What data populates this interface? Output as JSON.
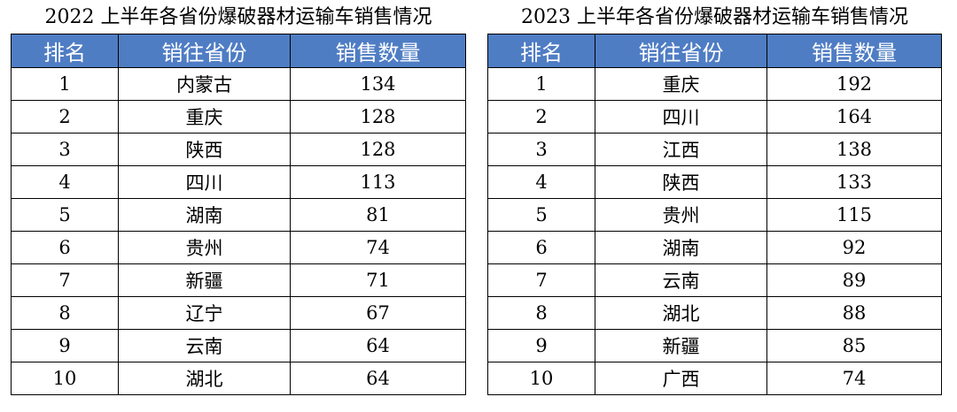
{
  "tables": [
    {
      "title": "2022 上半年各省份爆破器材运输车销售情况",
      "headers": [
        "排名",
        "销往省份",
        "销售数量"
      ],
      "rows": [
        [
          "1",
          "内蒙古",
          "134"
        ],
        [
          "2",
          "重庆",
          "128"
        ],
        [
          "3",
          "陕西",
          "128"
        ],
        [
          "4",
          "四川",
          "113"
        ],
        [
          "5",
          "湖南",
          "81"
        ],
        [
          "6",
          "贵州",
          "74"
        ],
        [
          "7",
          "新疆",
          "71"
        ],
        [
          "8",
          "辽宁",
          "67"
        ],
        [
          "9",
          "云南",
          "64"
        ],
        [
          "10",
          "湖北",
          "64"
        ]
      ]
    },
    {
      "title": "2023 上半年各省份爆破器材运输车销售情况",
      "headers": [
        "排名",
        "销往省份",
        "销售数量"
      ],
      "rows": [
        [
          "1",
          "重庆",
          "192"
        ],
        [
          "2",
          "四川",
          "164"
        ],
        [
          "3",
          "江西",
          "138"
        ],
        [
          "4",
          "陕西",
          "133"
        ],
        [
          "5",
          "贵州",
          "115"
        ],
        [
          "6",
          "湖南",
          "92"
        ],
        [
          "7",
          "云南",
          "89"
        ],
        [
          "8",
          "湖北",
          "88"
        ],
        [
          "9",
          "新疆",
          "85"
        ],
        [
          "10",
          "广西",
          "74"
        ]
      ]
    }
  ]
}
